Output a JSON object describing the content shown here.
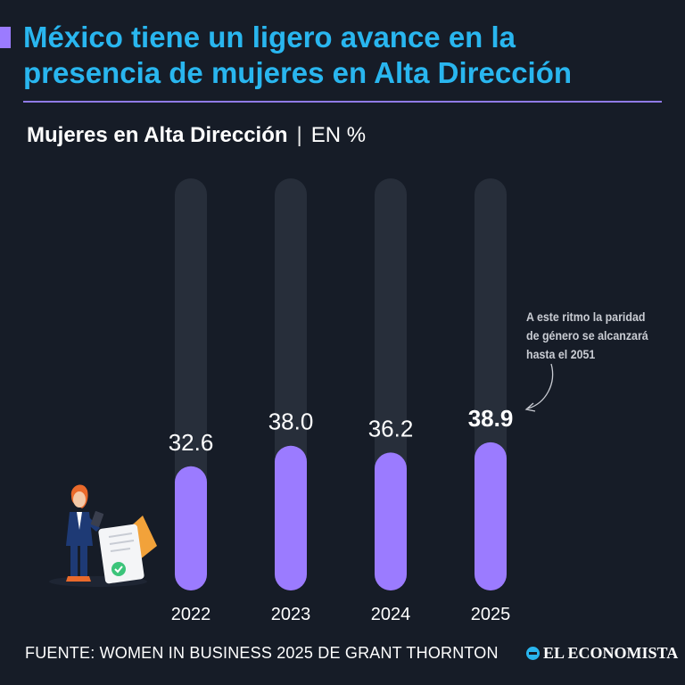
{
  "title_lines": [
    "México tiene un ligero avance en la",
    "presencia de mujeres en Alta Dirección"
  ],
  "subtitle": {
    "main": "Mujeres en Alta Dirección",
    "separator": "|",
    "unit": "EN %"
  },
  "annotation": "A este ritmo la paridad de género se alcanzará hasta el 2051",
  "source": "FUENTE: WOMEN IN BUSINESS 2025 DE GRANT THORNTON",
  "brand": "EL ECONOMISTA",
  "colors": {
    "background": "#161c27",
    "title": "#29b6ef",
    "bar": "#9b7bff",
    "track": "#272e3a",
    "text": "#ffffff"
  },
  "icons": [
    "businesswoman-illustration",
    "document-check-icon",
    "logo-icon"
  ],
  "chart_data": {
    "type": "bar",
    "categories": [
      "2022",
      "2023",
      "2024",
      "2025"
    ],
    "values": [
      32.6,
      38.0,
      36.2,
      38.9
    ],
    "value_labels": [
      "32.6",
      "38.0",
      "36.2",
      "38.9"
    ],
    "highlight_index": 3,
    "ylim": [
      0,
      100
    ],
    "grid": false
  }
}
